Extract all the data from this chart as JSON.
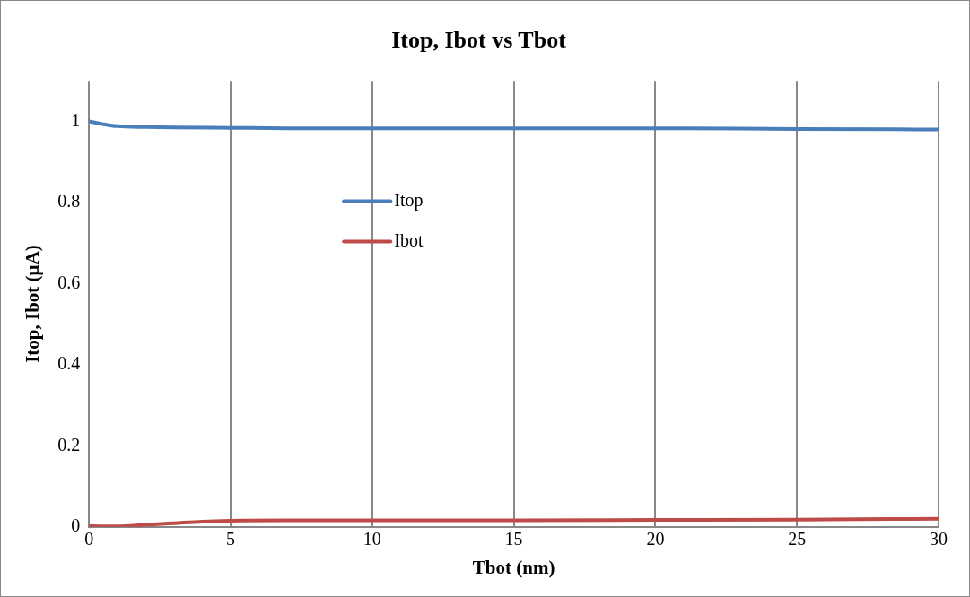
{
  "chart_data": {
    "type": "line",
    "title": "Itop, Ibot vs Tbot",
    "xlabel": "Tbot (nm)",
    "ylabel": "Itop, Ibot (µA)",
    "xlim": [
      0,
      30
    ],
    "xticks": [
      0,
      5,
      10,
      15,
      20,
      25,
      30
    ],
    "ylim": [
      0,
      1.1
    ],
    "yticks": [
      0,
      0.2,
      0.4,
      0.6,
      0.8,
      1
    ],
    "grid": "x",
    "legend": "top left",
    "marker": "none",
    "line_style": "solid",
    "series": [
      {
        "name": "Itop",
        "color": "#4a7ebb",
        "x": [
          0,
          0.5,
          1,
          2,
          3,
          5,
          7,
          10,
          15,
          20,
          25,
          30
        ],
        "values": [
          1.0,
          0.993,
          0.988,
          0.986,
          0.985,
          0.984,
          0.983,
          0.983,
          0.983,
          0.983,
          0.981,
          0.98
        ]
      },
      {
        "name": "Ibot",
        "color": "#be4b48",
        "x": [
          0,
          0.5,
          1,
          2,
          3,
          4,
          5,
          7,
          10,
          15,
          20,
          25,
          30
        ],
        "values": [
          0.002,
          0.001,
          0.001,
          0.005,
          0.009,
          0.013,
          0.015,
          0.016,
          0.016,
          0.016,
          0.017,
          0.018,
          0.02
        ]
      }
    ]
  }
}
